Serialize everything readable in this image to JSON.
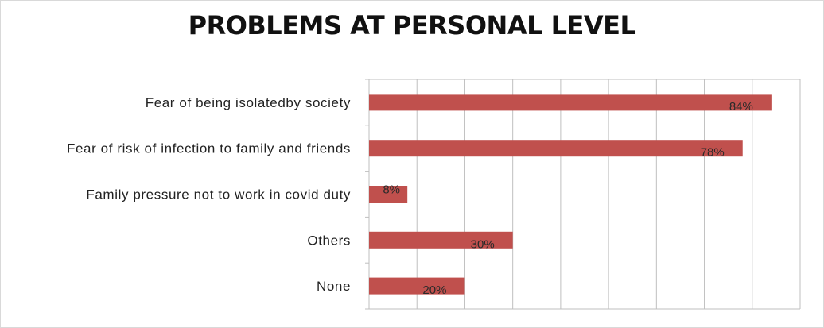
{
  "chart_data": {
    "type": "bar",
    "orientation": "horizontal",
    "title": "PROBLEMS AT PERSONAL LEVEL",
    "categories": [
      "Fear of being isolatedby society",
      "Fear of risk of infection to family and friends",
      "Family pressure not to work in covid duty",
      "Others",
      "None"
    ],
    "values": [
      84,
      78,
      8,
      30,
      20
    ],
    "data_labels": [
      "84%",
      "78%",
      "8%",
      "30%",
      "20%"
    ],
    "xlim": [
      0,
      90
    ],
    "grid": true,
    "legend": "none",
    "colors": {
      "bar": "#c0504d",
      "grid": "#bfbfbf"
    }
  }
}
